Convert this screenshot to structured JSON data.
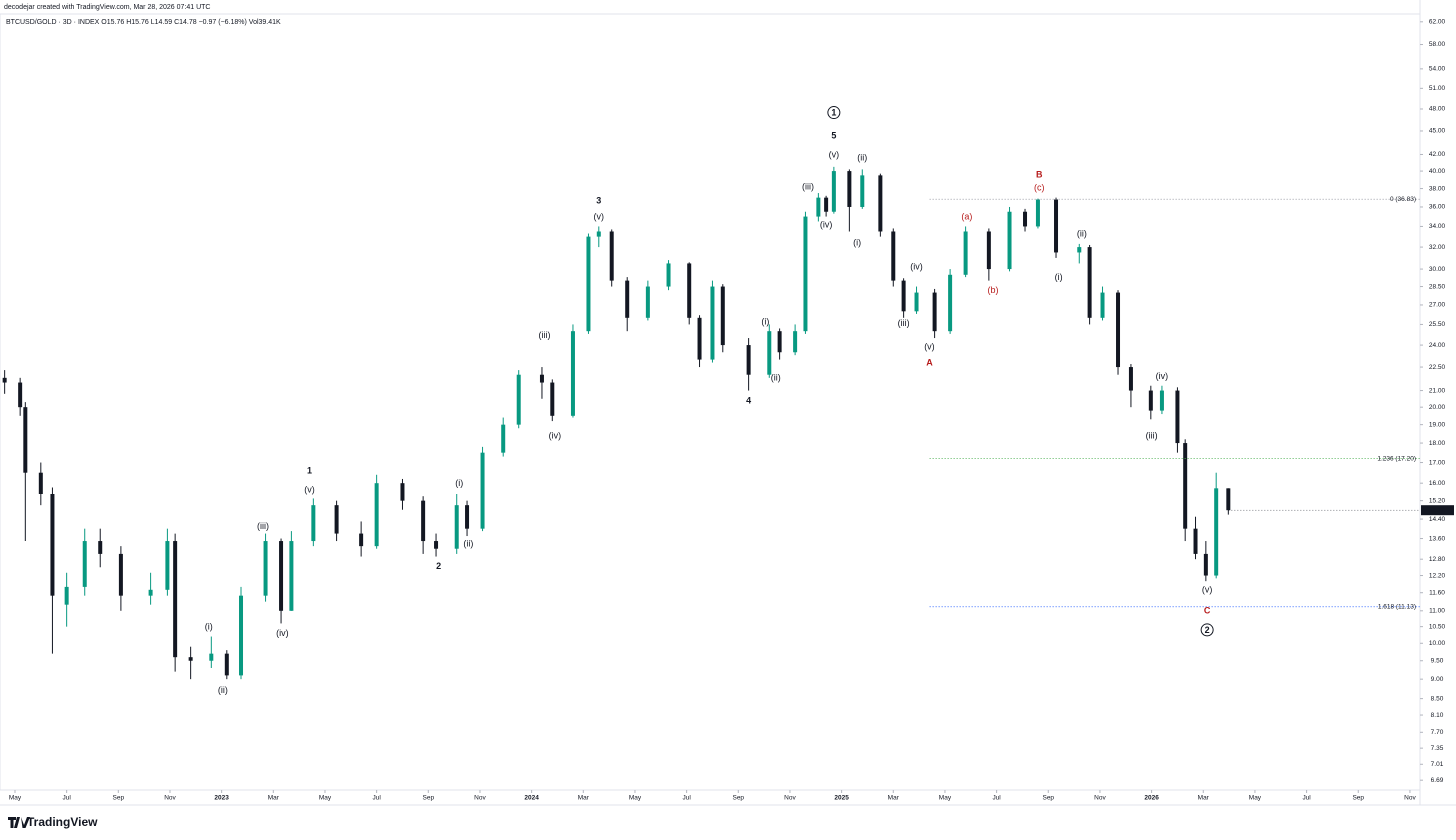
{
  "header": {
    "credit": "decodejar created with TradingView.com, Mar 28, 2026 07:41 UTC",
    "symbol": "BTCUSD/GOLD · 3D · INDEX  O15.76  H15.76  L14.59  C14.78  −0.97 (−6.18%)  Vol39.41K"
  },
  "footer": {
    "brand": "TradingView"
  },
  "chart_data": {
    "type": "candlestick",
    "log_scale": true,
    "up_color": "#089981",
    "down_color": "#131722",
    "x": [
      -0.4,
      0.2,
      0.4,
      1.0,
      1.45,
      2.0,
      2.7,
      3.3,
      4.1,
      5.25,
      5.9,
      6.2,
      6.8,
      7.6,
      8.2,
      8.75,
      9.7,
      10.3,
      10.7,
      11.55,
      12.45,
      13.4,
      14,
      15,
      15.8,
      16.3,
      17.1,
      17.5,
      18.1,
      18.9,
      19.5,
      20.4,
      20.8,
      21.6,
      22.2,
      22.6,
      23.1,
      23.7,
      24.5,
      25.3,
      26.1,
      26.5,
      27.0,
      27.4,
      28.4,
      29.2,
      29.6,
      30.2,
      30.6,
      31.1,
      31.4,
      31.7,
      32.3,
      32.8,
      33.5,
      34.0,
      34.4,
      34.9,
      35.6,
      36.2,
      36.8,
      37.7,
      38.5,
      39.1,
      39.6,
      40.3,
      41.2,
      41.6,
      42.1,
      42.7,
      43.2,
      43.97,
      44.4,
      45,
      45.3,
      45.7,
      46.1,
      46.5,
      46.97
    ],
    "open": [
      21.8,
      21.5,
      20,
      16.5,
      15.5,
      11.2,
      11.8,
      13.5,
      13,
      11.5,
      11.7,
      13.5,
      9.6,
      9.5,
      9.7,
      9.1,
      11.5,
      13.5,
      11,
      13.5,
      15,
      13.8,
      13.3,
      16,
      15.2,
      13.5,
      13.2,
      15,
      14,
      17.5,
      19,
      22,
      21.5,
      19.5,
      25,
      33,
      33.5,
      29,
      26,
      28.5,
      30.5,
      26,
      23,
      28.5,
      24,
      22,
      25,
      23.5,
      25,
      35,
      37,
      35.5,
      40,
      36,
      39.5,
      33.5,
      29,
      26.5,
      28,
      25,
      29.5,
      33.5,
      30,
      35.5,
      34,
      36.8,
      31.5,
      32,
      26,
      28,
      22.5,
      21,
      19.8,
      21,
      18,
      14,
      13,
      12.2,
      15.76
    ],
    "high": [
      22.3,
      21.8,
      20.3,
      17,
      15.8,
      12.3,
      14,
      14,
      13.3,
      12.3,
      14,
      13.8,
      9.9,
      10.2,
      9.8,
      11.8,
      13.8,
      13.6,
      13.9,
      15.3,
      15.2,
      14.3,
      16.4,
      16.2,
      15.4,
      13.8,
      15.5,
      15.2,
      17.8,
      19.4,
      22.3,
      22.5,
      21.7,
      25.5,
      33.3,
      34,
      33.7,
      29.3,
      29,
      30.8,
      30.6,
      26.2,
      29,
      28.7,
      24.5,
      25.5,
      25.2,
      25.5,
      35.5,
      37.5,
      37.2,
      40.5,
      40.2,
      40.2,
      39.7,
      33.8,
      29.2,
      28.5,
      28.3,
      30,
      34,
      33.8,
      36,
      35.8,
      36.9,
      37,
      32.3,
      32.2,
      28.5,
      28.2,
      22.7,
      21.3,
      21.3,
      21.2,
      18.2,
      14.5,
      13.5,
      16.5,
      15.76
    ],
    "low": [
      20.8,
      19.5,
      13.5,
      15,
      9.7,
      10.5,
      11.5,
      12.5,
      11,
      11.2,
      11.5,
      9.2,
      9.0,
      9.3,
      9.0,
      9.0,
      11.3,
      10.6,
      11,
      13.3,
      13.5,
      12.9,
      13.2,
      14.8,
      13,
      12.9,
      13,
      13.7,
      13.9,
      17.3,
      18.8,
      20.5,
      19.2,
      19.4,
      24.8,
      32,
      28.5,
      25,
      25.8,
      28.2,
      25.5,
      22.5,
      22.8,
      23.5,
      21,
      21.8,
      23,
      23.3,
      24.8,
      34.5,
      35,
      35.3,
      33.5,
      35.8,
      33,
      28.5,
      26,
      26.3,
      24.5,
      24.8,
      29.3,
      29,
      29.8,
      33.5,
      33.8,
      31,
      30.5,
      25.5,
      25.8,
      22,
      20,
      19.3,
      19.6,
      17.5,
      13.5,
      12.8,
      12.0,
      12.1,
      14.59
    ],
    "close": [
      21.5,
      20,
      16.5,
      15.5,
      11.5,
      11.8,
      13.5,
      13,
      11.5,
      11.7,
      13.5,
      9.6,
      9.5,
      9.7,
      9.1,
      11.5,
      13.5,
      11,
      13.5,
      15,
      13.8,
      13.3,
      16,
      15.2,
      13.5,
      13.2,
      15,
      14,
      17.5,
      19,
      22,
      21.5,
      19.5,
      25,
      33,
      33.5,
      29,
      26,
      28.5,
      30.5,
      26,
      23,
      28.5,
      24,
      22,
      25,
      23.5,
      25,
      35,
      37,
      35.5,
      40,
      36,
      39.5,
      33.5,
      29,
      26.5,
      28,
      25,
      29.5,
      33.5,
      30,
      35.5,
      34,
      36.8,
      31.5,
      32,
      26,
      28,
      22.5,
      21,
      19.8,
      21,
      18,
      14,
      13,
      12.2,
      15.76,
      14.78
    ],
    "last_price": 14.78,
    "xlim": [
      -0.58,
      54.39
    ],
    "xticks": [
      {
        "value": 0,
        "label": "May"
      },
      {
        "value": 2,
        "label": "Jul"
      },
      {
        "value": 4,
        "label": "Sep"
      },
      {
        "value": 6,
        "label": "Nov"
      },
      {
        "value": 8,
        "label": "2023"
      },
      {
        "value": 10,
        "label": "Mar"
      },
      {
        "value": 12,
        "label": "May"
      },
      {
        "value": 14,
        "label": "Jul"
      },
      {
        "value": 16,
        "label": "Sep"
      },
      {
        "value": 18,
        "label": "Nov"
      },
      {
        "value": 20,
        "label": "2024"
      },
      {
        "value": 22,
        "label": "Mar"
      },
      {
        "value": 24,
        "label": "May"
      },
      {
        "value": 26,
        "label": "Jul"
      },
      {
        "value": 28,
        "label": "Sep"
      },
      {
        "value": 30,
        "label": "Nov"
      },
      {
        "value": 32,
        "label": "2025"
      },
      {
        "value": 34,
        "label": "Mar"
      },
      {
        "value": 36,
        "label": "May"
      },
      {
        "value": 38,
        "label": "Jul"
      },
      {
        "value": 40,
        "label": "Sep"
      },
      {
        "value": 42,
        "label": "Nov"
      },
      {
        "value": 44,
        "label": "2026"
      },
      {
        "value": 46,
        "label": "Mar"
      },
      {
        "value": 48,
        "label": "May"
      },
      {
        "value": 50,
        "label": "Jul"
      },
      {
        "value": 52,
        "label": "Sep"
      },
      {
        "value": 54,
        "label": "Nov"
      }
    ],
    "ylim": [
      6.5,
      66.1
    ],
    "yticks": [
      {
        "value": 62,
        "label": "62.00"
      },
      {
        "value": 58,
        "label": "58.00"
      },
      {
        "value": 54,
        "label": "54.00"
      },
      {
        "value": 51,
        "label": "51.00"
      },
      {
        "value": 48,
        "label": "48.00"
      },
      {
        "value": 45,
        "label": "45.00"
      },
      {
        "value": 42,
        "label": "42.00"
      },
      {
        "value": 40,
        "label": "40.00"
      },
      {
        "value": 38,
        "label": "38.00"
      },
      {
        "value": 36,
        "label": "36.00"
      },
      {
        "value": 34,
        "label": "34.00"
      },
      {
        "value": 32,
        "label": "32.00"
      },
      {
        "value": 30,
        "label": "30.00"
      },
      {
        "value": 28.5,
        "label": "28.50"
      },
      {
        "value": 27,
        "label": "27.00"
      },
      {
        "value": 25.5,
        "label": "25.50"
      },
      {
        "value": 24,
        "label": "24.00"
      },
      {
        "value": 22.5,
        "label": "22.50"
      },
      {
        "value": 21,
        "label": "21.00"
      },
      {
        "value": 20,
        "label": "20.00"
      },
      {
        "value": 19,
        "label": "19.00"
      },
      {
        "value": 18,
        "label": "18.00"
      },
      {
        "value": 17,
        "label": "17.00"
      },
      {
        "value": 16,
        "label": "16.00"
      },
      {
        "value": 15.2,
        "label": "15.20"
      },
      {
        "value": 14.4,
        "label": "14.40"
      },
      {
        "value": 13.6,
        "label": "13.60"
      },
      {
        "value": 12.8,
        "label": "12.80"
      },
      {
        "value": 12.2,
        "label": "12.20"
      },
      {
        "value": 11.6,
        "label": "11.60"
      },
      {
        "value": 11,
        "label": "11.00"
      },
      {
        "value": 10.5,
        "label": "10.50"
      },
      {
        "value": 10,
        "label": "10.00"
      },
      {
        "value": 9.5,
        "label": "9.50"
      },
      {
        "value": 9,
        "label": "9.00"
      },
      {
        "value": 8.5,
        "label": "8.50"
      },
      {
        "value": 8.1,
        "label": "8.10"
      },
      {
        "value": 7.7,
        "label": "7.70"
      },
      {
        "value": 7.35,
        "label": "7.35"
      },
      {
        "value": 7.01,
        "label": "7.01"
      },
      {
        "value": 6.69,
        "label": "6.69"
      }
    ],
    "fib_start": 35.4,
    "fib_levels": [
      {
        "value": 36.83,
        "label": "0 (36.83)",
        "color": "#9598a1"
      },
      {
        "value": 17.2,
        "label": "1.236 (17.20)",
        "color": "#4caf50"
      },
      {
        "value": 11.13,
        "label": "1.618 (11.13)",
        "color": "#2962ff"
      }
    ],
    "annotations": [
      {
        "text": "1",
        "x": 31.7,
        "y": 47.5,
        "color": "#131722",
        "circle": true
      },
      {
        "text": "5",
        "x": 31.7,
        "y": 44.4,
        "color": "#131722"
      },
      {
        "text": "(v)",
        "x": 31.7,
        "y": 42.0,
        "color": "#131722"
      },
      {
        "text": "(ii)",
        "x": 32.8,
        "y": 41.6,
        "color": "#131722"
      },
      {
        "text": "(iii)",
        "x": 30.7,
        "y": 38.2,
        "color": "#131722"
      },
      {
        "text": "(iv)",
        "x": 31.4,
        "y": 34.2,
        "color": "#131722"
      },
      {
        "text": "(i)",
        "x": 32.6,
        "y": 32.4,
        "color": "#131722"
      },
      {
        "text": "3",
        "x": 22.6,
        "y": 36.7,
        "color": "#131722"
      },
      {
        "text": "(v)",
        "x": 22.6,
        "y": 35.0,
        "color": "#131722"
      },
      {
        "text": "(iii)",
        "x": 20.5,
        "y": 24.7,
        "color": "#131722"
      },
      {
        "text": "(iv)",
        "x": 20.9,
        "y": 18.4,
        "color": "#131722"
      },
      {
        "text": "1",
        "x": 11.4,
        "y": 16.6,
        "color": "#131722"
      },
      {
        "text": "(v)",
        "x": 11.4,
        "y": 15.7,
        "color": "#131722"
      },
      {
        "text": "(iii)",
        "x": 9.6,
        "y": 14.1,
        "color": "#131722"
      },
      {
        "text": "(iv)",
        "x": 10.35,
        "y": 10.3,
        "color": "#131722"
      },
      {
        "text": "(i)",
        "x": 7.5,
        "y": 10.5,
        "color": "#131722"
      },
      {
        "text": "(ii)",
        "x": 8.05,
        "y": 8.72,
        "color": "#131722"
      },
      {
        "text": "2",
        "x": 16.4,
        "y": 12.55,
        "color": "#131722"
      },
      {
        "text": "(i)",
        "x": 17.2,
        "y": 16.0,
        "color": "#131722"
      },
      {
        "text": "(ii)",
        "x": 17.55,
        "y": 13.4,
        "color": "#131722"
      },
      {
        "text": "4",
        "x": 28.4,
        "y": 20.4,
        "color": "#131722"
      },
      {
        "text": "(i)",
        "x": 29.05,
        "y": 25.7,
        "color": "#131722"
      },
      {
        "text": "(ii)",
        "x": 29.45,
        "y": 21.8,
        "color": "#131722"
      },
      {
        "text": "(iv)",
        "x": 34.9,
        "y": 30.2,
        "color": "#131722"
      },
      {
        "text": "(iii)",
        "x": 34.4,
        "y": 25.6,
        "color": "#131722"
      },
      {
        "text": "(v)",
        "x": 35.4,
        "y": 23.9,
        "color": "#131722"
      },
      {
        "text": "A",
        "x": 35.4,
        "y": 22.8,
        "color": "#b71c1c"
      },
      {
        "text": "B",
        "x": 39.65,
        "y": 39.6,
        "color": "#b71c1c"
      },
      {
        "text": "(c)",
        "x": 39.65,
        "y": 38.1,
        "color": "#b71c1c"
      },
      {
        "text": "(a)",
        "x": 36.85,
        "y": 35.0,
        "color": "#b71c1c"
      },
      {
        "text": "(b)",
        "x": 37.86,
        "y": 28.2,
        "color": "#b71c1c"
      },
      {
        "text": "(ii)",
        "x": 41.3,
        "y": 33.3,
        "color": "#131722"
      },
      {
        "text": "(i)",
        "x": 40.4,
        "y": 29.3,
        "color": "#131722"
      },
      {
        "text": "(iv)",
        "x": 44.4,
        "y": 21.9,
        "color": "#131722"
      },
      {
        "text": "(iii)",
        "x": 44.0,
        "y": 18.4,
        "color": "#131722"
      },
      {
        "text": "(v)",
        "x": 46.15,
        "y": 11.7,
        "color": "#131722"
      },
      {
        "text": "C",
        "x": 46.15,
        "y": 11.0,
        "color": "#b71c1c"
      },
      {
        "text": "2",
        "x": 46.15,
        "y": 10.4,
        "color": "#131722",
        "circle": true
      }
    ]
  }
}
